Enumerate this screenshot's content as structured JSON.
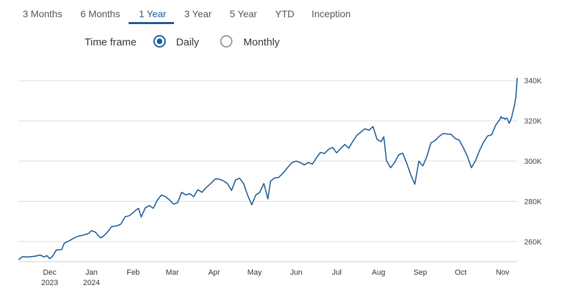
{
  "tabs": [
    {
      "label": "3 Months",
      "active": false
    },
    {
      "label": "6 Months",
      "active": false
    },
    {
      "label": "1 Year",
      "active": true
    },
    {
      "label": "3 Year",
      "active": false
    },
    {
      "label": "5 Year",
      "active": false
    },
    {
      "label": "YTD",
      "active": false
    },
    {
      "label": "Inception",
      "active": false
    }
  ],
  "timeframe": {
    "label": "Time frame",
    "options": [
      {
        "label": "Daily",
        "selected": true
      },
      {
        "label": "Monthly",
        "selected": false
      }
    ]
  },
  "colors": {
    "line": "#1a5a96",
    "accent": "#1a5a96",
    "grid": "#dddddd"
  },
  "chart_data": {
    "type": "line",
    "title": "",
    "xlabel": "",
    "ylabel": "",
    "ylim": [
      250000,
      350000
    ],
    "yticks": [
      260000,
      280000,
      300000,
      320000,
      340000
    ],
    "ytick_labels": [
      "260K",
      "280K",
      "300K",
      "320K",
      "340K"
    ],
    "xlim": [
      "2023-11-10",
      "2024-11-14"
    ],
    "xticks": [
      {
        "date": "2023-12-01",
        "label": "Dec",
        "sub": "2023"
      },
      {
        "date": "2024-01-01",
        "label": "Jan",
        "sub": "2024"
      },
      {
        "date": "2024-02-01",
        "label": "Feb"
      },
      {
        "date": "2024-03-01",
        "label": "Mar"
      },
      {
        "date": "2024-04-01",
        "label": "Apr"
      },
      {
        "date": "2024-05-01",
        "label": "May"
      },
      {
        "date": "2024-06-01",
        "label": "Jun"
      },
      {
        "date": "2024-07-01",
        "label": "Jul"
      },
      {
        "date": "2024-08-01",
        "label": "Aug"
      },
      {
        "date": "2024-09-01",
        "label": "Sep"
      },
      {
        "date": "2024-10-01",
        "label": "Oct"
      },
      {
        "date": "2024-11-01",
        "label": "Nov"
      }
    ],
    "grid": true,
    "legend": "none",
    "series": [
      {
        "points": [
          [
            "2023-11-10",
            251000
          ],
          [
            "2023-11-13",
            252500
          ],
          [
            "2023-11-16",
            252300
          ],
          [
            "2023-11-20",
            252500
          ],
          [
            "2023-11-23",
            252800
          ],
          [
            "2023-11-26",
            253300
          ],
          [
            "2023-11-29",
            252300
          ],
          [
            "2023-12-01",
            253000
          ],
          [
            "2023-12-03",
            251500
          ],
          [
            "2023-12-05",
            252500
          ],
          [
            "2023-12-08",
            255800
          ],
          [
            "2023-12-12",
            256000
          ],
          [
            "2023-12-14",
            259200
          ],
          [
            "2023-12-18",
            260500
          ],
          [
            "2023-12-21",
            261700
          ],
          [
            "2023-12-24",
            262600
          ],
          [
            "2023-12-27",
            263000
          ],
          [
            "2024-01-01",
            264000
          ],
          [
            "2024-01-03",
            265400
          ],
          [
            "2024-01-06",
            264700
          ],
          [
            "2024-01-08",
            263000
          ],
          [
            "2024-01-10",
            261800
          ],
          [
            "2024-01-12",
            262700
          ],
          [
            "2024-01-15",
            264700
          ],
          [
            "2024-01-18",
            267400
          ],
          [
            "2024-01-22",
            267800
          ],
          [
            "2024-01-25",
            268700
          ],
          [
            "2024-01-28",
            272300
          ],
          [
            "2024-01-31",
            272800
          ],
          [
            "2024-02-02",
            273800
          ],
          [
            "2024-02-05",
            275600
          ],
          [
            "2024-02-07",
            276500
          ],
          [
            "2024-02-09",
            272200
          ],
          [
            "2024-02-12",
            276700
          ],
          [
            "2024-02-15",
            277900
          ],
          [
            "2024-02-18",
            276500
          ],
          [
            "2024-02-21",
            280600
          ],
          [
            "2024-02-24",
            283100
          ],
          [
            "2024-02-27",
            282300
          ],
          [
            "2024-03-01",
            280700
          ],
          [
            "2024-03-04",
            278600
          ],
          [
            "2024-03-07",
            279300
          ],
          [
            "2024-03-10",
            284500
          ],
          [
            "2024-03-13",
            283200
          ],
          [
            "2024-03-16",
            283800
          ],
          [
            "2024-03-19",
            282300
          ],
          [
            "2024-03-22",
            285800
          ],
          [
            "2024-03-25",
            284500
          ],
          [
            "2024-03-28",
            286700
          ],
          [
            "2024-04-01",
            289100
          ],
          [
            "2024-04-04",
            291200
          ],
          [
            "2024-04-07",
            291000
          ],
          [
            "2024-04-10",
            290200
          ],
          [
            "2024-04-13",
            288800
          ],
          [
            "2024-04-16",
            285400
          ],
          [
            "2024-04-19",
            290600
          ],
          [
            "2024-04-22",
            291500
          ],
          [
            "2024-04-25",
            288800
          ],
          [
            "2024-04-28",
            283000
          ],
          [
            "2024-05-01",
            278300
          ],
          [
            "2024-05-04",
            283100
          ],
          [
            "2024-05-07",
            284500
          ],
          [
            "2024-05-10",
            288900
          ],
          [
            "2024-05-13",
            281200
          ],
          [
            "2024-05-15",
            290100
          ],
          [
            "2024-05-18",
            291600
          ],
          [
            "2024-05-21",
            291900
          ],
          [
            "2024-05-24",
            293900
          ],
          [
            "2024-05-28",
            297100
          ],
          [
            "2024-05-31",
            299300
          ],
          [
            "2024-06-03",
            300000
          ],
          [
            "2024-06-06",
            299300
          ],
          [
            "2024-06-09",
            298100
          ],
          [
            "2024-06-12",
            299300
          ],
          [
            "2024-06-15",
            298500
          ],
          [
            "2024-06-18",
            301600
          ],
          [
            "2024-06-21",
            304300
          ],
          [
            "2024-06-24",
            303800
          ],
          [
            "2024-06-27",
            305900
          ],
          [
            "2024-06-30",
            306800
          ],
          [
            "2024-07-03",
            304100
          ],
          [
            "2024-07-06",
            306200
          ],
          [
            "2024-07-09",
            308300
          ],
          [
            "2024-07-12",
            306400
          ],
          [
            "2024-07-15",
            309800
          ],
          [
            "2024-07-18",
            312800
          ],
          [
            "2024-07-21",
            314500
          ],
          [
            "2024-07-24",
            316100
          ],
          [
            "2024-07-27",
            315300
          ],
          [
            "2024-07-30",
            317200
          ],
          [
            "2024-08-02",
            310800
          ],
          [
            "2024-08-05",
            309700
          ],
          [
            "2024-08-07",
            312100
          ],
          [
            "2024-08-09",
            300200
          ],
          [
            "2024-08-12",
            296700
          ],
          [
            "2024-08-15",
            299300
          ],
          [
            "2024-08-18",
            303100
          ],
          [
            "2024-08-21",
            304000
          ],
          [
            "2024-08-24",
            299000
          ],
          [
            "2024-08-27",
            293200
          ],
          [
            "2024-08-30",
            288500
          ],
          [
            "2024-09-02",
            300000
          ],
          [
            "2024-09-05",
            297600
          ],
          [
            "2024-09-08",
            302400
          ],
          [
            "2024-09-11",
            309100
          ],
          [
            "2024-09-14",
            310200
          ],
          [
            "2024-09-17",
            312300
          ],
          [
            "2024-09-20",
            313700
          ],
          [
            "2024-09-23",
            313500
          ],
          [
            "2024-09-26",
            313300
          ],
          [
            "2024-09-29",
            311200
          ],
          [
            "2024-10-02",
            310400
          ],
          [
            "2024-10-05",
            306700
          ],
          [
            "2024-10-08",
            302400
          ],
          [
            "2024-10-11",
            296700
          ],
          [
            "2024-10-14",
            300200
          ],
          [
            "2024-10-17",
            305200
          ],
          [
            "2024-10-20",
            309400
          ],
          [
            "2024-10-23",
            312500
          ],
          [
            "2024-10-26",
            313100
          ],
          [
            "2024-10-29",
            317800
          ],
          [
            "2024-11-01",
            320600
          ],
          [
            "2024-11-02",
            322100
          ],
          [
            "2024-11-03",
            321300
          ],
          [
            "2024-11-04",
            321500
          ],
          [
            "2024-11-05",
            320800
          ],
          [
            "2024-11-06",
            321500
          ],
          [
            "2024-11-07",
            320700
          ],
          [
            "2024-11-08",
            318800
          ],
          [
            "2024-11-09",
            320100
          ],
          [
            "2024-11-10",
            322300
          ],
          [
            "2024-11-11",
            325100
          ],
          [
            "2024-11-12",
            327900
          ],
          [
            "2024-11-13",
            331800
          ],
          [
            "2024-11-14",
            341400
          ]
        ]
      }
    ]
  }
}
